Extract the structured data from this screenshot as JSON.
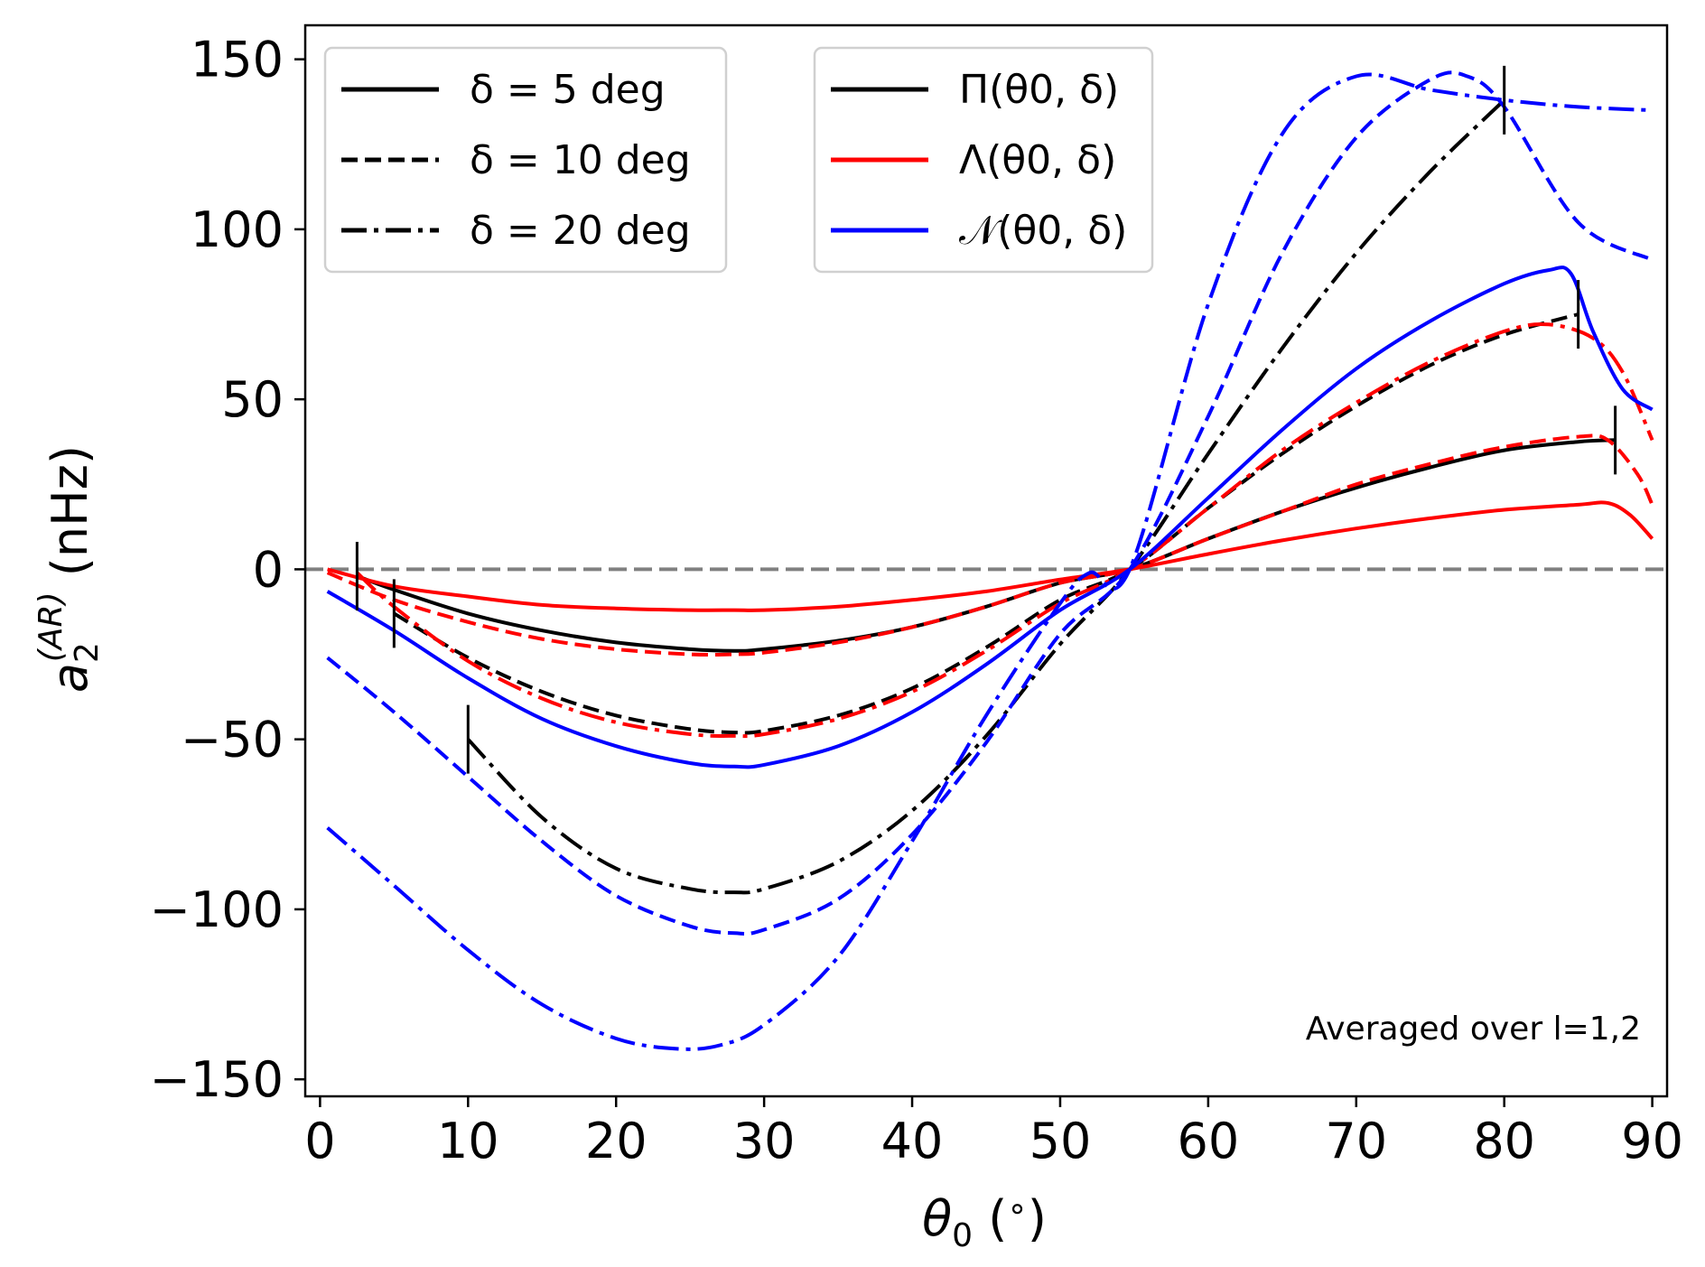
{
  "chart_data": {
    "type": "line",
    "xlabel": "θ0 (°)",
    "xlabel_parts": {
      "symbol": "θ",
      "sub": "0",
      "unit": " (",
      "deg": "∘",
      "close": ")"
    },
    "ylabel": "a2(AR) (nHz)",
    "ylabel_parts": {
      "symbol": "a",
      "sub": "2",
      "sup": "(AR)",
      "unit": " (nHz)"
    },
    "xlim": [
      -1,
      91
    ],
    "ylim": [
      -155,
      160
    ],
    "xticks": [
      0,
      10,
      20,
      30,
      40,
      50,
      60,
      70,
      80,
      90
    ],
    "yticks": [
      -150,
      -100,
      -50,
      0,
      50,
      100,
      150
    ],
    "ytick_labels": [
      "−150",
      "−100",
      "−50",
      "0",
      "50",
      "100",
      "150"
    ],
    "zero_line": {
      "y": 0,
      "color": "#808080",
      "style": "dashed"
    },
    "annotation": {
      "text": "Averaged over l=1,2",
      "color": "#ff0000",
      "position": "bottom-right"
    },
    "legend_delta": {
      "position": "top-left",
      "entries": [
        {
          "label": "δ = 5 deg",
          "style": "solid"
        },
        {
          "label": "δ = 10 deg",
          "style": "dashed"
        },
        {
          "label": "δ = 20 deg",
          "style": "dashdot"
        }
      ]
    },
    "legend_func": {
      "position": "top-center",
      "entries": [
        {
          "label": "Π(θ0, δ)",
          "color": "#000000"
        },
        {
          "label": "Λ(θ0, δ)",
          "color": "#ff0000"
        },
        {
          "label": "𝒩(θ0, δ)",
          "color": "#0000ff"
        }
      ]
    },
    "series": [
      {
        "name": "Π δ=5",
        "func": "Pi",
        "delta": 5,
        "color": "#000000",
        "style": "solid",
        "x": [
          2.5,
          5,
          10,
          15,
          20,
          25,
          28,
          30,
          35,
          40,
          45,
          50,
          54.7,
          60,
          65,
          70,
          75,
          80,
          85,
          87.5
        ],
        "y": [
          -2,
          -6,
          -13,
          -18,
          -21.5,
          -23.5,
          -24,
          -23.5,
          -21,
          -17,
          -11,
          -4,
          0,
          9,
          17,
          24,
          30,
          35,
          37.5,
          38
        ]
      },
      {
        "name": "Π δ=10",
        "func": "Pi",
        "delta": 10,
        "color": "#000000",
        "style": "dashed",
        "x": [
          5,
          10,
          15,
          20,
          25,
          28,
          30,
          35,
          40,
          45,
          50,
          54.7,
          60,
          65,
          70,
          75,
          80,
          85
        ],
        "y": [
          -13,
          -26,
          -36,
          -43,
          -47,
          -48,
          -47.5,
          -43,
          -35,
          -23,
          -9,
          0,
          18,
          34,
          48,
          60,
          69,
          75
        ]
      },
      {
        "name": "Π δ=20",
        "func": "Pi",
        "delta": 20,
        "color": "#000000",
        "style": "dashdot",
        "x": [
          10,
          15,
          20,
          25,
          28,
          30,
          35,
          40,
          45,
          50,
          54.7,
          60,
          65,
          70,
          75,
          80
        ],
        "y": [
          -50,
          -73,
          -88,
          -94,
          -95,
          -94,
          -86,
          -71,
          -49,
          -22,
          0,
          34,
          65,
          93,
          117,
          138
        ]
      },
      {
        "name": "Λ δ=5",
        "func": "Lambda",
        "delta": 5,
        "color": "#ff0000",
        "style": "solid",
        "x": [
          0.5,
          5,
          10,
          15,
          20,
          25,
          28,
          30,
          35,
          40,
          45,
          50,
          54.7,
          60,
          65,
          70,
          75,
          80,
          85,
          87,
          88.5,
          90
        ],
        "y": [
          0,
          -5,
          -8,
          -10.5,
          -11.5,
          -12,
          -12,
          -12,
          -11,
          -9,
          -6.5,
          -3,
          0,
          4.5,
          8.5,
          12,
          15,
          17.5,
          19,
          19.5,
          16,
          9
        ]
      },
      {
        "name": "Λ δ=10",
        "func": "Lambda",
        "delta": 10,
        "color": "#ff0000",
        "style": "dashed",
        "x": [
          0.5,
          5,
          10,
          15,
          20,
          25,
          28,
          30,
          35,
          40,
          45,
          50,
          54.7,
          60,
          65,
          70,
          75,
          80,
          85,
          87,
          89,
          90
        ],
        "y": [
          -1,
          -9,
          -15.5,
          -20.5,
          -23.5,
          -25,
          -25,
          -24.5,
          -21.5,
          -17,
          -11,
          -4,
          0,
          9,
          17,
          25,
          31,
          36,
          39,
          38,
          28,
          19
        ]
      },
      {
        "name": "Λ δ=20",
        "func": "Lambda",
        "delta": 20,
        "color": "#ff0000",
        "style": "dashdot",
        "x": [
          2.5,
          5,
          10,
          15,
          20,
          25,
          28,
          30,
          35,
          40,
          45,
          50,
          54.7,
          60,
          65,
          70,
          75,
          80,
          83,
          86,
          88,
          90
        ],
        "y": [
          -1,
          -11,
          -27,
          -38,
          -45,
          -48.5,
          -49,
          -48.5,
          -44,
          -36,
          -24,
          -10,
          0,
          18,
          35,
          49,
          61,
          70,
          72,
          68,
          58,
          38
        ]
      },
      {
        "name": "𝒩 δ=5",
        "func": "N",
        "delta": 5,
        "color": "#0000ff",
        "style": "solid",
        "x": [
          0.5,
          5,
          10,
          15,
          20,
          25,
          28,
          30,
          35,
          40,
          45,
          50,
          54.7,
          60,
          65,
          70,
          75,
          80,
          83,
          84.5,
          86,
          88,
          90
        ],
        "y": [
          -6.5,
          -18,
          -32,
          -44,
          -52,
          -57,
          -58,
          -57.5,
          -52,
          -42,
          -28,
          -12,
          0,
          21,
          41,
          59,
          73,
          84,
          88,
          87,
          70,
          53,
          47
        ]
      },
      {
        "name": "𝒩 δ=10",
        "func": "N",
        "delta": 10,
        "color": "#0000ff",
        "style": "dashed",
        "x": [
          0.5,
          5,
          10,
          15,
          20,
          25,
          28,
          30,
          35,
          40,
          45,
          50,
          54.7,
          60,
          65,
          70,
          75,
          77.5,
          80,
          85,
          90
        ],
        "y": [
          -26,
          -42,
          -61,
          -80,
          -96,
          -105,
          -107,
          -106,
          -97,
          -78,
          -51,
          -19,
          0,
          45,
          93,
          127,
          144,
          145,
          136,
          102,
          91
        ]
      },
      {
        "name": "𝒩 δ=20",
        "func": "N",
        "delta": 20,
        "color": "#0000ff",
        "style": "dashdot",
        "x": [
          0.5,
          5,
          10,
          15,
          20,
          24,
          27,
          30,
          35,
          40,
          45,
          50,
          52,
          54.7,
          60,
          65,
          70,
          75,
          80,
          85,
          90
        ],
        "y": [
          -76,
          -93,
          -112,
          -128,
          -138,
          -141,
          -140,
          -134,
          -114,
          -80,
          -43,
          -10,
          -1,
          0,
          78,
          128,
          145,
          141,
          138,
          136,
          135
        ]
      }
    ],
    "boundary_markers": [
      {
        "x": 2.5,
        "y": -2
      },
      {
        "x": 5,
        "y": -13
      },
      {
        "x": 10,
        "y": -50
      },
      {
        "x": 80,
        "y": 138
      },
      {
        "x": 85,
        "y": 75
      },
      {
        "x": 87.5,
        "y": 38
      }
    ]
  }
}
